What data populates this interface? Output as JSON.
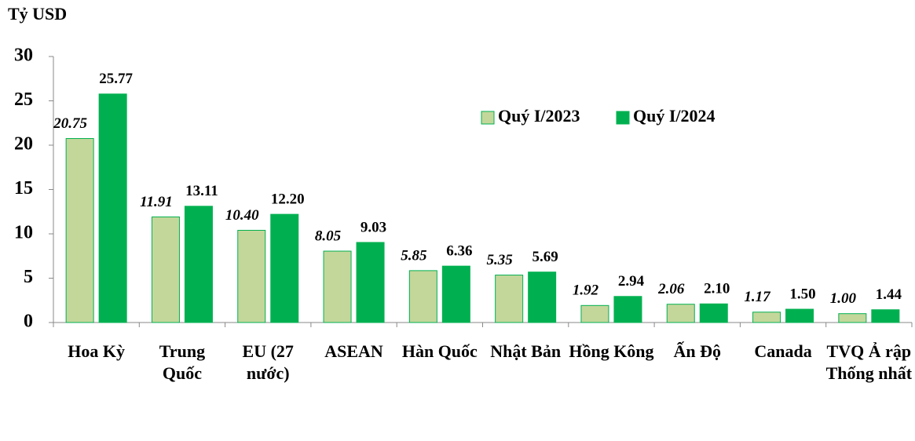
{
  "chart_data": {
    "type": "bar",
    "y_label": "Tỷ USD",
    "categories": [
      "Hoa Kỳ",
      "Trung Quốc",
      "EU (27 nước)",
      "ASEAN",
      "Hàn Quốc",
      "Nhật Bản",
      "Hồng Kông",
      "Ấn Độ",
      "Canada",
      "TVQ Ả rập Thống nhất"
    ],
    "series": [
      {
        "name": "Quý I/2023",
        "color": "#c4d79b",
        "values": [
          20.75,
          11.91,
          10.4,
          8.05,
          5.85,
          5.35,
          1.92,
          2.06,
          1.17,
          1.0
        ],
        "value_labels": [
          "20.75",
          "11.91",
          "10.40",
          "8.05",
          "5.85",
          "5.35",
          "1.92",
          "2.06",
          "1.17",
          "1.00"
        ]
      },
      {
        "name": "Quý I/2024",
        "color": "#00b050",
        "values": [
          25.77,
          13.11,
          12.2,
          9.03,
          6.36,
          5.69,
          2.94,
          2.1,
          1.5,
          1.44
        ],
        "value_labels": [
          "25.77",
          "13.11",
          "12.20",
          "9.03",
          "6.36",
          "5.69",
          "2.94",
          "2.10",
          "1.50",
          "1.44"
        ]
      }
    ],
    "ylim": [
      0,
      30
    ],
    "yticks": [
      0,
      5,
      10,
      15,
      20,
      25,
      30
    ],
    "grid": false,
    "legend": "upper right"
  }
}
